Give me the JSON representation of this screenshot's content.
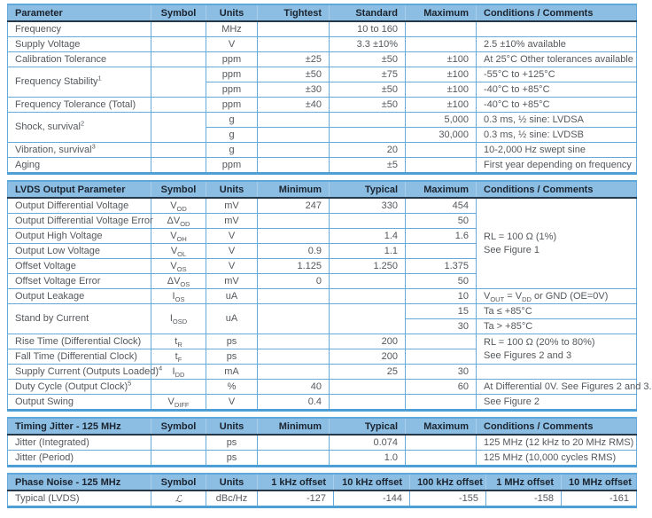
{
  "colors": {
    "header_bg": "#8CBDE2",
    "header_text": "#1A232E",
    "header_underline": "#24384A",
    "cell_border": "#66AADB",
    "section_bottom_border": "#4D9FD6",
    "body_text": "#54585C",
    "page_bg": "#ffffff"
  },
  "sections": [
    {
      "id": "general-specs",
      "columns": [
        {
          "key": "parameter",
          "label": "Parameter",
          "w": 162,
          "a": "l"
        },
        {
          "key": "symbol",
          "label": "Symbol",
          "w": 62,
          "a": "c"
        },
        {
          "key": "units",
          "label": "Units",
          "w": 58,
          "a": "c"
        },
        {
          "key": "tightest",
          "label": "Tightest",
          "w": 81,
          "a": "r"
        },
        {
          "key": "standard",
          "label": "Standard",
          "w": 86,
          "a": "r"
        },
        {
          "key": "maximum",
          "label": "Maximum",
          "w": 80,
          "a": "r"
        },
        {
          "key": "conditions",
          "label": "Conditions / Comments",
          "w": 181,
          "a": "l"
        }
      ],
      "rows": [
        [
          "Frequency",
          "",
          "MHz",
          "",
          "10 to 160",
          "",
          ""
        ],
        [
          "Supply Voltage",
          "",
          "V",
          "",
          "3.3 ±10%",
          "",
          "2.5 ±10% available"
        ],
        [
          "Calibration Tolerance",
          "",
          "ppm",
          "±25",
          "±50",
          "±100",
          "At 25°C Other tolerances available"
        ],
        [
          {
            "t": "Frequency Stability^1^",
            "rs": 2
          },
          {
            "t": "",
            "rs": 2
          },
          "ppm",
          "±50",
          "±75",
          "±100",
          "-55°C to +125°C"
        ],
        [
          "ppm",
          "±30",
          "±50",
          "±100",
          "-40°C to +85°C"
        ],
        [
          "Frequency Tolerance (Total)",
          "",
          "ppm",
          "±40",
          "±50",
          "±100",
          "-40°C to +85°C"
        ],
        [
          {
            "t": "Shock, survival^2^",
            "rs": 2
          },
          {
            "t": "",
            "rs": 2
          },
          "g",
          "",
          "",
          "5,000",
          "0.3 ms, ½ sine: LVDSA"
        ],
        [
          "g",
          "",
          "",
          "30,000",
          "0.3 ms, ½ sine: LVDSB"
        ],
        [
          "Vibration, survival^3^",
          "",
          "g",
          "",
          "20",
          "",
          "10-2,000 Hz swept sine"
        ],
        [
          "Aging",
          "",
          "ppm",
          "",
          "±5",
          "",
          "First year depending on frequency"
        ]
      ]
    },
    {
      "id": "lvds-output",
      "columns": [
        {
          "key": "parameter",
          "label": "LVDS Output Parameter",
          "w": 162,
          "a": "l"
        },
        {
          "key": "symbol",
          "label": "Symbol",
          "w": 62,
          "a": "c"
        },
        {
          "key": "units",
          "label": "Units",
          "w": 58,
          "a": "c"
        },
        {
          "key": "minimum",
          "label": "Minimum",
          "w": 81,
          "a": "r"
        },
        {
          "key": "typical",
          "label": "Typical",
          "w": 86,
          "a": "r"
        },
        {
          "key": "maximum",
          "label": "Maximum",
          "w": 80,
          "a": "r"
        },
        {
          "key": "conditions",
          "label": "Conditions / Comments",
          "w": 181,
          "a": "l"
        }
      ],
      "rows": [
        [
          "Output Differential Voltage",
          "V~OD~",
          "mV",
          "247",
          "330",
          "454",
          {
            "t": "RL = 100 Ω (1%)\nSee Figure 1",
            "rs": 6,
            "cls": "cond-tall"
          }
        ],
        [
          "Output Differential Voltage Error",
          "ΔV~OD~",
          "mV",
          "",
          "",
          "50"
        ],
        [
          "Output High Voltage",
          "V~OH~",
          "V",
          "",
          "1.4",
          "1.6"
        ],
        [
          "Output Low Voltage",
          "V~OL~",
          "V",
          "0.9",
          "1.1",
          ""
        ],
        [
          "Offset Voltage",
          "V~OS~",
          "V",
          "1.125",
          "1.250",
          "1.375"
        ],
        [
          "Offset Voltage Error",
          "ΔV~OS~",
          "mV",
          "0",
          "",
          "50"
        ],
        [
          "Output Leakage",
          "I~OS~",
          "uA",
          "",
          "",
          "10",
          "V~OUT~ = V~DD~ or GND (OE=0V)"
        ],
        [
          {
            "t": "Stand by Current",
            "rs": 2
          },
          {
            "t": "I~OSD~",
            "rs": 2
          },
          {
            "t": "uA",
            "rs": 2
          },
          {
            "t": "",
            "rs": 2
          },
          {
            "t": "",
            "rs": 2
          },
          "15",
          "Ta ≤ +85°C"
        ],
        [
          "30",
          "Ta > +85°C"
        ],
        [
          "Rise Time (Differential Clock)",
          "t~R~",
          "ps",
          "",
          "200",
          "",
          {
            "t": "RL = 100 Ω (20% to 80%)\nSee Figures 2 and 3",
            "rs": 2,
            "cls": "cond-2row"
          }
        ],
        [
          "Fall Time (Differential Clock)",
          "t~F~",
          "ps",
          "",
          "200",
          ""
        ],
        [
          "Supply Current (Outputs Loaded)^4^",
          "I~DD~",
          "mA",
          "",
          "25",
          "30",
          ""
        ],
        [
          "Duty Cycle (Output Clock)^5^",
          "",
          "%",
          "40",
          "",
          "60",
          "At Differential 0V. See Figures 2 and 3."
        ],
        [
          "Output Swing",
          "V~DIFF~",
          "V",
          "0.4",
          "",
          "",
          "See Figure 2"
        ]
      ]
    },
    {
      "id": "timing-jitter",
      "columns": [
        {
          "key": "parameter",
          "label": "Timing Jitter - 125 MHz",
          "w": 162,
          "a": "l"
        },
        {
          "key": "symbol",
          "label": "Symbol",
          "w": 62,
          "a": "c"
        },
        {
          "key": "units",
          "label": "Units",
          "w": 58,
          "a": "c"
        },
        {
          "key": "minimum",
          "label": "Minimum",
          "w": 81,
          "a": "r"
        },
        {
          "key": "typical",
          "label": "Typical",
          "w": 86,
          "a": "r"
        },
        {
          "key": "maximum",
          "label": "Maximum",
          "w": 80,
          "a": "r"
        },
        {
          "key": "conditions",
          "label": "Conditions / Comments",
          "w": 181,
          "a": "l"
        }
      ],
      "rows": [
        [
          "Jitter (Integrated)",
          "",
          "ps",
          "",
          "0.074",
          "",
          "125 MHz (12 kHz to 20 MHz RMS)"
        ],
        [
          "Jitter (Period)",
          "",
          "ps",
          "",
          "1.0",
          "",
          "125 MHz (10,000 cycles RMS)"
        ]
      ]
    },
    {
      "id": "phase-noise",
      "columns": [
        {
          "key": "parameter",
          "label": "Phase Noise - 125 MHz",
          "w": 162,
          "a": "l"
        },
        {
          "key": "symbol",
          "label": "Symbol",
          "w": 62,
          "a": "c"
        },
        {
          "key": "units",
          "label": "Units",
          "w": 58,
          "a": "c"
        },
        {
          "key": "offset-1khz",
          "label": "1 kHz offset",
          "w": 86,
          "a": "r"
        },
        {
          "key": "offset-10khz",
          "label": "10 kHz offset",
          "w": 86,
          "a": "r"
        },
        {
          "key": "offset-100khz",
          "label": "100 kHz offset",
          "w": 86,
          "a": "r"
        },
        {
          "key": "offset-1mhz",
          "label": "1 MHz offset",
          "w": 85,
          "a": "r"
        },
        {
          "key": "offset-10mhz",
          "label": "10 MHz offset",
          "w": 85,
          "a": "r"
        }
      ],
      "rows": [
        [
          "Typical (LVDS)",
          {
            "t": "ℒ",
            "cls": "script"
          },
          "dBc/Hz",
          "-127",
          "-144",
          "-155",
          "-158",
          "-161"
        ]
      ]
    }
  ]
}
